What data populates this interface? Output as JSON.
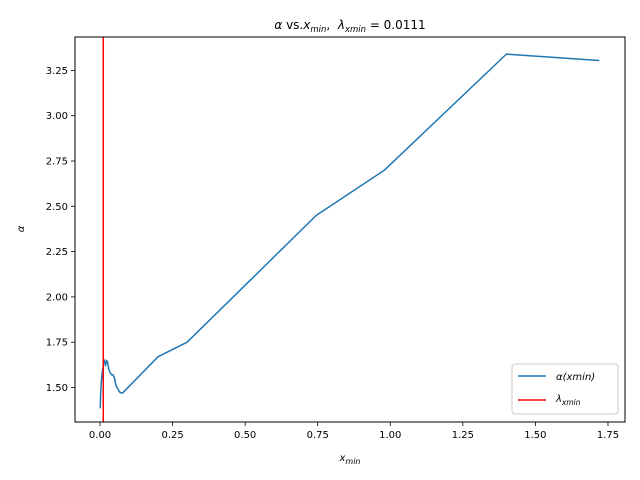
{
  "chart_data": {
    "type": "line",
    "title": {
      "alpha": "α",
      "vs": " vs.",
      "x": "x",
      "x_sub": "min",
      "sep": ",  ",
      "lambda": "λ",
      "lambda_sub": "xmin",
      "eq": " = 0.0111"
    },
    "xlabel": {
      "base": "x",
      "sub": "min"
    },
    "ylabel": "α",
    "xlim": [
      -0.0863,
      1.8087
    ],
    "ylim": [
      1.3095,
      3.4345
    ],
    "xticks": [
      0.0,
      0.25,
      0.5,
      0.75,
      1.0,
      1.25,
      1.5,
      1.75
    ],
    "xtick_labels": [
      "0.00",
      "0.25",
      "0.50",
      "0.75",
      "1.00",
      "1.25",
      "1.50",
      "1.75"
    ],
    "yticks": [
      1.5,
      1.75,
      2.0,
      2.25,
      2.5,
      2.75,
      3.0,
      3.25
    ],
    "ytick_labels": [
      "1.50",
      "1.75",
      "2.00",
      "2.25",
      "2.50",
      "2.75",
      "3.00",
      "3.25"
    ],
    "series": [
      {
        "name": "α(xmin)",
        "color": "#1f77b4",
        "x": [
          0.0005,
          0.002,
          0.004,
          0.006,
          0.008,
          0.01,
          0.0111,
          0.013,
          0.016,
          0.019,
          0.022,
          0.026,
          0.03,
          0.035,
          0.04,
          0.045,
          0.05,
          0.055,
          0.062,
          0.07,
          0.078,
          0.2,
          0.3,
          0.745,
          0.98,
          1.4,
          1.72
        ],
        "y": [
          1.385,
          1.46,
          1.52,
          1.56,
          1.59,
          1.61,
          1.625,
          1.655,
          1.64,
          1.62,
          1.65,
          1.64,
          1.6,
          1.58,
          1.57,
          1.57,
          1.55,
          1.51,
          1.49,
          1.47,
          1.47,
          1.67,
          1.75,
          2.45,
          2.7,
          3.34,
          3.305
        ]
      }
    ],
    "vline": {
      "name": "λ",
      "name_sub": "xmin",
      "x": 0.0111,
      "color": "#ff0000"
    },
    "legend": {
      "placement": "lower-right",
      "entries": [
        {
          "key": "alpha",
          "prefix": "α(",
          "mid": "xmin",
          "suffix": ")"
        },
        {
          "key": "lambda",
          "prefix": "λ",
          "sub": "xmin"
        }
      ]
    },
    "grid": false
  }
}
